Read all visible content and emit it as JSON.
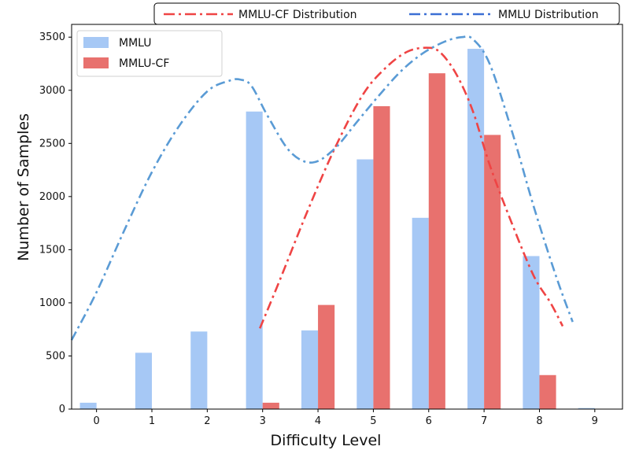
{
  "chart_data": {
    "type": "bar",
    "xlabel": "Difficulty Level",
    "ylabel": "Number of Samples",
    "categories": [
      "0",
      "1",
      "2",
      "3",
      "4",
      "5",
      "6",
      "7",
      "8",
      "9"
    ],
    "xlim": [
      -0.45,
      9.5
    ],
    "ylim": [
      0,
      3620
    ],
    "yticks": [
      0,
      500,
      1000,
      1500,
      2000,
      2500,
      3000,
      3500
    ],
    "series": [
      {
        "name": "MMLU",
        "color": "#a6c8f5",
        "values": [
          60,
          530,
          730,
          2800,
          740,
          2350,
          1800,
          3390,
          1440,
          10
        ]
      },
      {
        "name": "MMLU-CF",
        "color": "#e8716e",
        "values": [
          0,
          0,
          0,
          60,
          980,
          2850,
          3160,
          2580,
          320,
          0
        ]
      }
    ],
    "curves": [
      {
        "name": "MMLU-CF Distribution",
        "color": "#ef4444",
        "x": [
          2.95,
          3.3,
          3.8,
          4.3,
          4.8,
          5.2,
          5.6,
          5.95,
          6.2,
          6.5,
          6.8,
          7.1,
          7.5,
          7.9,
          8.2,
          8.42
        ],
        "y": [
          760,
          1200,
          1850,
          2450,
          2950,
          3200,
          3360,
          3400,
          3360,
          3150,
          2800,
          2300,
          1750,
          1250,
          1000,
          780
        ]
      },
      {
        "name": "MMLU Distribution",
        "color": "#5a9bd5",
        "x": [
          -0.45,
          0,
          0.5,
          1,
          1.5,
          2,
          2.4,
          2.6,
          2.8,
          3.1,
          3.5,
          3.9,
          4.3,
          4.7,
          5.1,
          5.5,
          5.9,
          6.3,
          6.6,
          6.8,
          7.1,
          7.5,
          7.9,
          8.3,
          8.6
        ],
        "y": [
          650,
          1100,
          1680,
          2230,
          2670,
          2990,
          3090,
          3100,
          3040,
          2750,
          2420,
          2320,
          2450,
          2700,
          2950,
          3180,
          3350,
          3460,
          3500,
          3480,
          3250,
          2620,
          1900,
          1250,
          820
        ]
      }
    ],
    "legend": {
      "bars_position": "upper-left",
      "curves_position": "top, above plot",
      "entries": [
        "MMLU",
        "MMLU-CF",
        "MMLU-CF Distribution",
        "MMLU Distribution"
      ]
    }
  }
}
